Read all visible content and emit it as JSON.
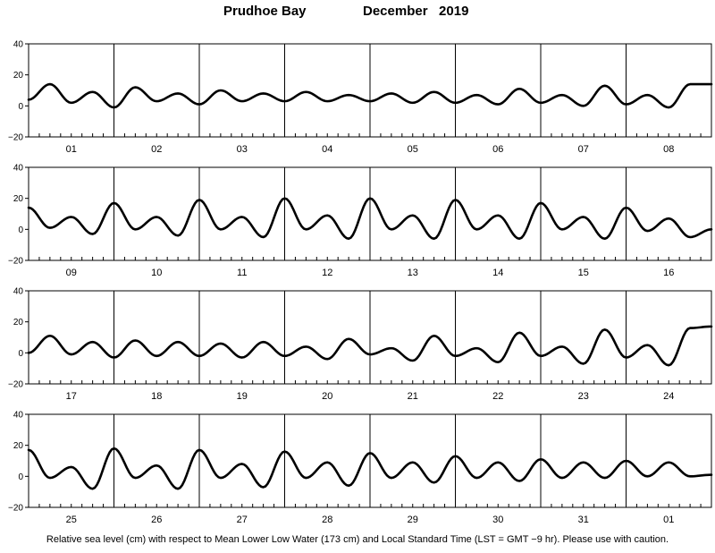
{
  "title": {
    "station": "Prudhoe Bay",
    "month_year": "December   2019"
  },
  "footnote": "Relative sea level (cm) with respect to Mean Lower Low Water (173 cm) and Local Standard Time (LST = GMT −9 hr). Please use with caution.",
  "colors": {
    "curve": "#000000",
    "axes": "#000000",
    "background": "#ffffff"
  },
  "chart_data": {
    "type": "line",
    "title": "Prudhoe Bay   December   2019",
    "xlabel": "",
    "ylabel": "",
    "ylim": [
      -20,
      40
    ],
    "yticks": [
      -20,
      0,
      20,
      40
    ],
    "x_units": "day of month (LST), tick marks every 3 hours",
    "grid": "vertical lines at day boundaries",
    "panels": [
      {
        "days": [
          "01",
          "02",
          "03",
          "04",
          "05",
          "06",
          "07",
          "08"
        ],
        "series": [
          {
            "x": [
              0,
              0.25,
              0.5,
              0.75,
              1,
              1.25,
              1.5,
              1.75,
              2,
              2.25,
              2.5,
              2.75,
              3,
              3.25,
              3.5,
              3.75,
              4,
              4.25,
              4.5,
              4.75,
              5,
              5.25,
              5.5,
              5.75,
              6,
              6.25,
              6.5,
              6.75,
              7,
              7.25,
              7.5,
              7.75,
              8
            ],
            "values": [
              4,
              14,
              2,
              9,
              -1,
              12,
              3,
              8,
              1,
              10,
              3,
              8,
              3,
              9,
              3,
              7,
              3,
              8,
              2,
              9,
              2,
              7,
              1,
              11,
              2,
              7,
              0,
              13,
              1,
              7,
              -1,
              14,
              14
            ]
          }
        ]
      },
      {
        "days": [
          "09",
          "10",
          "11",
          "12",
          "13",
          "14",
          "15",
          "16"
        ],
        "series": [
          {
            "x": [
              0,
              0.25,
              0.5,
              0.75,
              1,
              1.25,
              1.5,
              1.75,
              2,
              2.25,
              2.5,
              2.75,
              3,
              3.25,
              3.5,
              3.75,
              4,
              4.25,
              4.5,
              4.75,
              5,
              5.25,
              5.5,
              5.75,
              6,
              6.25,
              6.5,
              6.75,
              7,
              7.25,
              7.5,
              7.75,
              8
            ],
            "values": [
              14,
              1,
              8,
              -3,
              17,
              0,
              8,
              -4,
              19,
              0,
              8,
              -5,
              20,
              0,
              9,
              -6,
              20,
              0,
              9,
              -6,
              19,
              0,
              9,
              -6,
              17,
              0,
              8,
              -6,
              14,
              -1,
              7,
              -5,
              0
            ]
          }
        ]
      },
      {
        "days": [
          "17",
          "18",
          "19",
          "20",
          "21",
          "22",
          "23",
          "24"
        ],
        "series": [
          {
            "x": [
              0,
              0.25,
              0.5,
              0.75,
              1,
              1.25,
              1.5,
              1.75,
              2,
              2.25,
              2.5,
              2.75,
              3,
              3.25,
              3.5,
              3.75,
              4,
              4.25,
              4.5,
              4.75,
              5,
              5.25,
              5.5,
              5.75,
              6,
              6.25,
              6.5,
              6.75,
              7,
              7.25,
              7.5,
              7.75,
              8
            ],
            "values": [
              0,
              11,
              -1,
              7,
              -3,
              8,
              -2,
              7,
              -2,
              6,
              -3,
              7,
              -2,
              4,
              -4,
              9,
              -1,
              3,
              -5,
              11,
              -2,
              3,
              -6,
              13,
              -2,
              4,
              -7,
              15,
              -3,
              5,
              -8,
              16,
              17
            ]
          }
        ]
      },
      {
        "days": [
          "25",
          "26",
          "27",
          "28",
          "29",
          "30",
          "31",
          "01"
        ],
        "series": [
          {
            "x": [
              0,
              0.25,
              0.5,
              0.75,
              1,
              1.25,
              1.5,
              1.75,
              2,
              2.25,
              2.5,
              2.75,
              3,
              3.25,
              3.5,
              3.75,
              4,
              4.25,
              4.5,
              4.75,
              5,
              5.25,
              5.5,
              5.75,
              6,
              6.25,
              6.5,
              6.75,
              7,
              7.25,
              7.5,
              7.75,
              8
            ],
            "values": [
              17,
              -1,
              6,
              -8,
              18,
              -1,
              7,
              -8,
              17,
              -1,
              8,
              -7,
              16,
              -1,
              9,
              -6,
              15,
              -1,
              9,
              -4,
              13,
              -1,
              9,
              -3,
              11,
              -1,
              9,
              -1,
              10,
              0,
              9,
              0,
              1
            ]
          }
        ]
      }
    ]
  }
}
